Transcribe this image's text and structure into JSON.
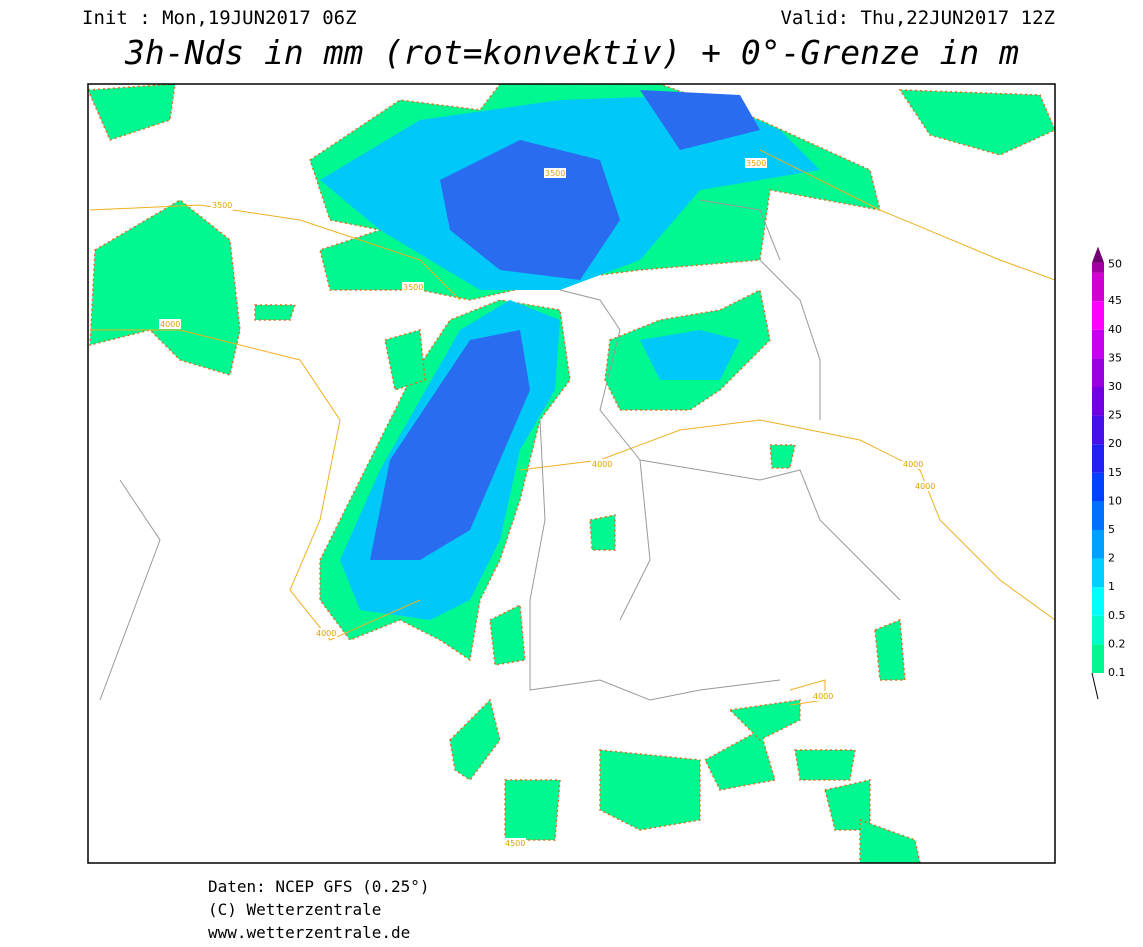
{
  "header": {
    "init": "Init : Mon,19JUN2017 06Z",
    "valid": "Valid: Thu,22JUN2017 12Z",
    "title": "3h-Nds in mm (rot=konvektiv) + 0°-Grenze in m"
  },
  "legend": {
    "levels": [
      0.1,
      0.2,
      0.5,
      1,
      2,
      5,
      10,
      15,
      20,
      25,
      30,
      35,
      40,
      45,
      50
    ],
    "colors": [
      "#00f890",
      "#00ffc8",
      "#00ffff",
      "#00d0ff",
      "#00a0ff",
      "#0070ff",
      "#0040ff",
      "#2020f0",
      "#4810e8",
      "#7000e0",
      "#9800e0",
      "#c800f0",
      "#ff00ff",
      "#d000d0",
      "#a000a0",
      "#700070"
    ]
  },
  "contour_labels": [
    3500,
    3500,
    3500,
    3500,
    4000,
    4000,
    4000,
    4000,
    4000,
    4000,
    4500
  ],
  "footer": {
    "source": "Daten: NCEP GFS (0.25°)",
    "copyright": "(C) Wetterzentrale",
    "url": "www.wetterzentrale.de"
  }
}
